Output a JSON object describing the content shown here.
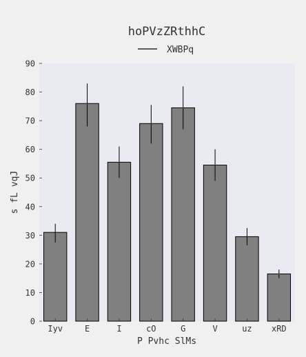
{
  "chart_data": {
    "type": "bar",
    "title": "hoPVzZRthhC",
    "xlabel": "P Pvhc SlMs",
    "ylabel": "s fL vqJ",
    "legend": {
      "entries": [
        "XWBPq"
      ],
      "placement": "top-center"
    },
    "ylim": [
      0,
      90
    ],
    "yticks": [
      0,
      10,
      20,
      30,
      40,
      50,
      60,
      70,
      80,
      90
    ],
    "categories": [
      "Iyv",
      "E",
      "I",
      "cO",
      "G",
      "V",
      "uz",
      "xRD"
    ],
    "values": [
      31,
      76,
      55.5,
      69,
      74.5,
      54.5,
      29.5,
      16.5
    ],
    "error_low": [
      27.5,
      68,
      50,
      62,
      67,
      49,
      26.5,
      15
    ],
    "error_high": [
      34,
      83,
      61,
      75.5,
      82,
      60,
      32.5,
      18
    ],
    "grid": false,
    "colors": {
      "plot_bg": "#eaeaf2",
      "bar": "#808080",
      "edge": "#000000",
      "errorbar": "#000000",
      "page_bg": "#f0f0f0"
    }
  }
}
